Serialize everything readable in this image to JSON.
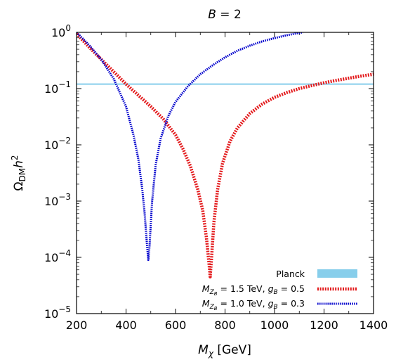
{
  "chart_data": {
    "type": "line",
    "title_parts": [
      "B",
      " = 2"
    ],
    "xlabel_parts": [
      "M",
      "χ",
      " [GeV]"
    ],
    "ylabel_parts": [
      "Ω",
      "DM",
      "h",
      "2"
    ],
    "xlim": [
      200,
      1400
    ],
    "ylim": [
      1e-05,
      1
    ],
    "yscale": "log",
    "grid": false,
    "legend_position": "lower-right",
    "x_ticks": [
      {
        "value": 200,
        "label": "200"
      },
      {
        "value": 400,
        "label": "400"
      },
      {
        "value": 600,
        "label": "600"
      },
      {
        "value": 800,
        "label": "800"
      },
      {
        "value": 1000,
        "label": "1000"
      },
      {
        "value": 1200,
        "label": "1200"
      },
      {
        "value": 1400,
        "label": "1400"
      }
    ],
    "y_ticks": [
      {
        "value": 1,
        "base": "10",
        "exp": "0"
      },
      {
        "value": 0.1,
        "base": "10",
        "exp": "−1"
      },
      {
        "value": 0.01,
        "base": "10",
        "exp": "−2"
      },
      {
        "value": 0.001,
        "base": "10",
        "exp": "−3"
      },
      {
        "value": 0.0001,
        "base": "10",
        "exp": "−4"
      },
      {
        "value": 1e-05,
        "base": "10",
        "exp": "−5"
      }
    ],
    "planck": {
      "name": "Planck",
      "value": 0.12,
      "color": "#87ceeb"
    },
    "series": [
      {
        "legend": {
          "M_sub": "Z",
          "M_subsub": "B",
          "mass": " = 1.5 TeV, ",
          "g_sub": "B",
          "coupling": " = 0.5"
        },
        "color": "#e31a1c",
        "style": "dotted-thick",
        "x": [
          200,
          250,
          300,
          350,
          400,
          450,
          500,
          550,
          600,
          630,
          660,
          690,
          710,
          725,
          735,
          740,
          745,
          755,
          770,
          790,
          820,
          850,
          900,
          950,
          1000,
          1050,
          1100,
          1150,
          1200,
          1250,
          1300,
          1350,
          1400
        ],
        "y": [
          0.95,
          0.55,
          0.33,
          0.2,
          0.12,
          0.076,
          0.048,
          0.029,
          0.015,
          0.0085,
          0.0042,
          0.0016,
          0.00068,
          0.00022,
          8e-05,
          4.5e-05,
          9e-05,
          0.00042,
          0.0016,
          0.0047,
          0.0115,
          0.02,
          0.036,
          0.053,
          0.07,
          0.085,
          0.1,
          0.113,
          0.127,
          0.14,
          0.153,
          0.167,
          0.18
        ]
      },
      {
        "legend": {
          "M_sub": "Z",
          "M_subsub": "B",
          "mass": " = 1.0 TeV, ",
          "g_sub": "B",
          "coupling": " = 0.3"
        },
        "color": "#0000cc",
        "style": "dotted",
        "x": [
          200,
          250,
          300,
          350,
          400,
          430,
          450,
          465,
          475,
          485,
          490,
          495,
          505,
          520,
          540,
          570,
          600,
          650,
          700,
          750,
          800,
          850,
          900,
          950,
          1000,
          1050,
          1100,
          1115
        ],
        "y": [
          1.0,
          0.6,
          0.33,
          0.15,
          0.048,
          0.015,
          0.0055,
          0.0017,
          0.00062,
          0.00016,
          9e-05,
          0.00016,
          0.00095,
          0.0045,
          0.013,
          0.032,
          0.058,
          0.11,
          0.18,
          0.26,
          0.36,
          0.47,
          0.58,
          0.69,
          0.79,
          0.89,
          0.98,
          1.0
        ]
      }
    ]
  }
}
